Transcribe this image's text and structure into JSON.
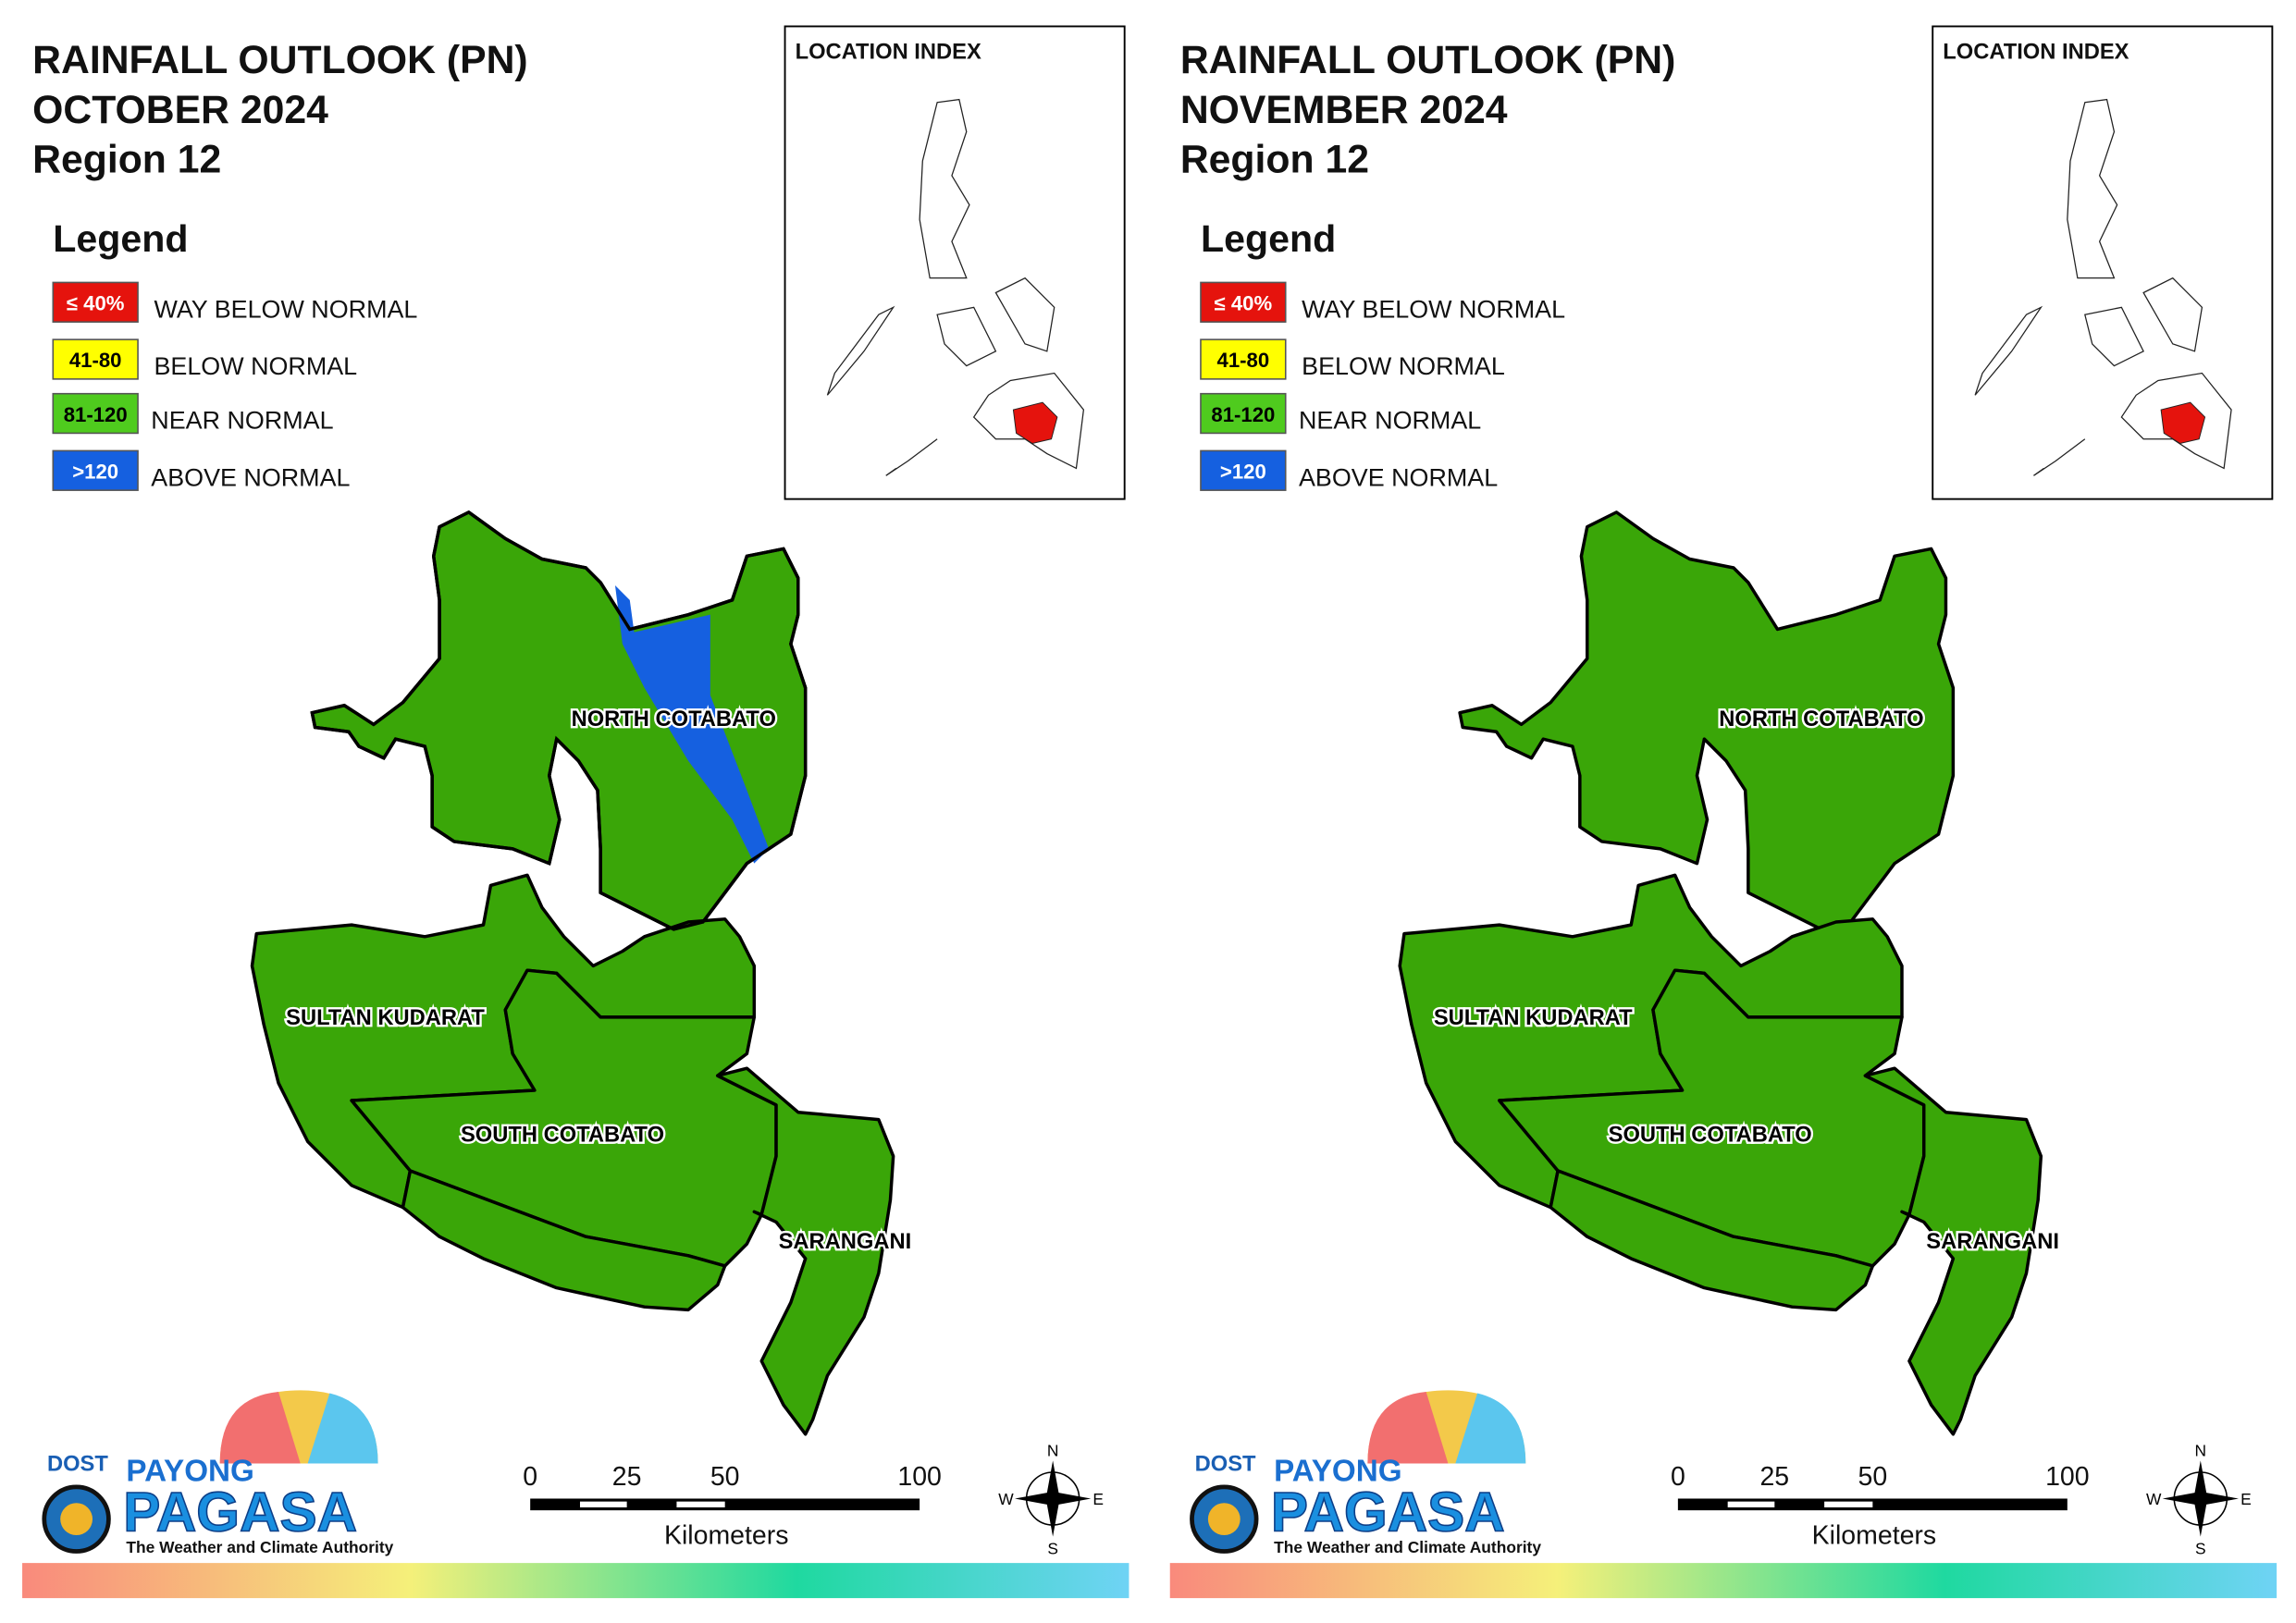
{
  "panels": [
    {
      "title": [
        "RAINFALL OUTLOOK (PN)",
        "OCTOBER 2024",
        "Region 12"
      ],
      "legend_title": "Legend",
      "legend": [
        {
          "label": "≤ 40%",
          "text": "WAY BELOW NORMAL",
          "color": "#e5130d"
        },
        {
          "label": "41-80",
          "text": "BELOW NORMAL",
          "color": "#ffff00"
        },
        {
          "label": "81-120",
          "text": "NEAR NORMAL",
          "color": "#4fcb1e"
        },
        {
          "label": ">120",
          "text": "ABOVE NORMAL",
          "color": "#1560e0"
        }
      ],
      "location_index": "LOCATION INDEX",
      "provinces": [
        "NORTH COTABATO",
        "SULTAN KUDARAT",
        "SOUTH COTABATO",
        "SARANGANI"
      ],
      "scale": {
        "ticks": [
          "0",
          "25",
          "50",
          "100"
        ],
        "unit": "Kilometers"
      },
      "compass": [
        "N",
        "E",
        "S",
        "W"
      ],
      "logo": [
        "DOST",
        "PAYONG",
        "PAGASA",
        "The Weather and Climate Authority"
      ]
    },
    {
      "title": [
        "RAINFALL OUTLOOK (PN)",
        "NOVEMBER 2024",
        "Region 12"
      ],
      "legend_title": "Legend",
      "legend": [
        {
          "label": "≤ 40%",
          "text": "WAY BELOW NORMAL",
          "color": "#e5130d"
        },
        {
          "label": "41-80",
          "text": "BELOW NORMAL",
          "color": "#ffff00"
        },
        {
          "label": "81-120",
          "text": "NEAR NORMAL",
          "color": "#4fcb1e"
        },
        {
          "label": ">120",
          "text": "ABOVE NORMAL",
          "color": "#1560e0"
        }
      ],
      "location_index": "LOCATION INDEX",
      "provinces": [
        "NORTH COTABATO",
        "SULTAN KUDARAT",
        "SOUTH COTABATO",
        "SARANGANI"
      ],
      "scale": {
        "ticks": [
          "0",
          "25",
          "50",
          "100"
        ],
        "unit": "Kilometers"
      },
      "compass": [
        "N",
        "E",
        "S",
        "W"
      ],
      "logo": [
        "DOST",
        "PAYONG",
        "PAGASA",
        "The Weather and Climate Authority"
      ]
    }
  ]
}
